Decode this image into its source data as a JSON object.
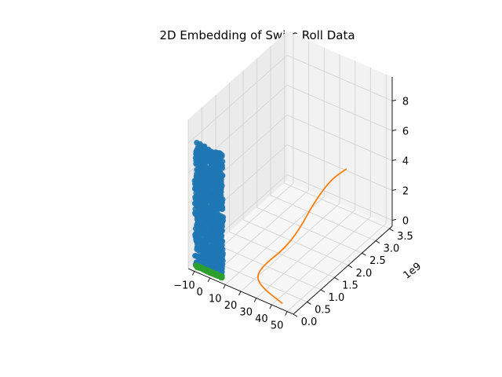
{
  "chart_data": {
    "type": "scatter",
    "projection": "3d",
    "title": "2D Embedding of Swiss Roll Data",
    "x_ticks": [
      "−10",
      "0",
      "10",
      "20",
      "30",
      "40",
      "50"
    ],
    "y_ticks": [
      "0.0",
      "0.5",
      "1.0",
      "1.5",
      "2.0",
      "2.5",
      "3.0",
      "3.5"
    ],
    "y_offset_label": "1e9",
    "z_ticks": [
      "0",
      "2",
      "4",
      "6",
      "8"
    ],
    "xlim": [
      -14,
      54
    ],
    "ylim": [
      0,
      3.6
    ],
    "zlim": [
      -0.4,
      9.6
    ],
    "grid": true,
    "series": [
      {
        "kind": "scatter",
        "color": "#1f77b4",
        "x_range": [
          -10,
          8
        ],
        "y_range": [
          0,
          0.05
        ],
        "z_range": [
          0,
          8.2
        ]
      },
      {
        "kind": "scatter",
        "color": "#2ca02c",
        "x_range": [
          -10,
          8
        ],
        "y_range": [
          0,
          0.05
        ],
        "z_value": 0
      },
      {
        "kind": "line",
        "color": "#ff7f0e",
        "points": [
          [
            47,
            0.0,
            0
          ],
          [
            30,
            0.2,
            0
          ],
          [
            22,
            0.45,
            0
          ],
          [
            20,
            0.9,
            0
          ],
          [
            21,
            1.5,
            0
          ],
          [
            22,
            2.0,
            0.5
          ],
          [
            23,
            2.5,
            1.6
          ],
          [
            25,
            3.0,
            2.4
          ],
          [
            28,
            3.4,
            2.6
          ]
        ]
      }
    ]
  }
}
